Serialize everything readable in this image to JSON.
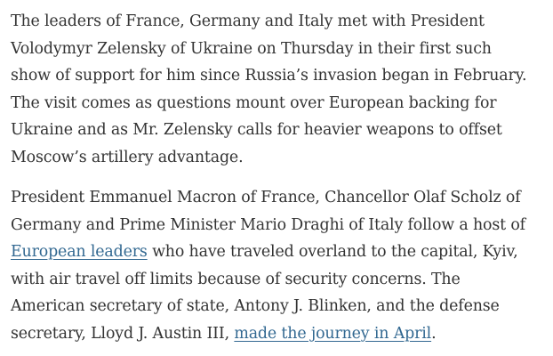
{
  "article": {
    "paragraph1": {
      "lines": [
        "The leaders of France, Germany and Italy met with President",
        "Volodymyr Zelensky of Ukraine on Thursday in their first such",
        "show of support for him since Russia’s invasion began in February.",
        "The visit comes as questions mount over European backing for",
        "Ukraine and as Mr. Zelensky calls for heavier weapons to offset",
        "Moscow’s artillery advantage."
      ]
    },
    "paragraph2": {
      "line1": "President Emmanuel Macron of France, Chancellor Olaf Scholz of",
      "line2": "Germany and Prime Minister Mario Draghi of Italy follow a host of",
      "link1_text": "European leaders",
      "line3_after_link": " who have traveled overland to the capital, Kyiv,",
      "line4": "with air travel off limits because of security concerns. The",
      "line5": "American secretary of state, Antony J. Blinken, and the defense",
      "line6_before_link": "secretary, Lloyd J. Austin III, ",
      "link2_text": "made the journey in April",
      "line6_after_link": "."
    }
  },
  "colors": {
    "text": "#333333",
    "link": "#326891",
    "background": "#ffffff"
  }
}
